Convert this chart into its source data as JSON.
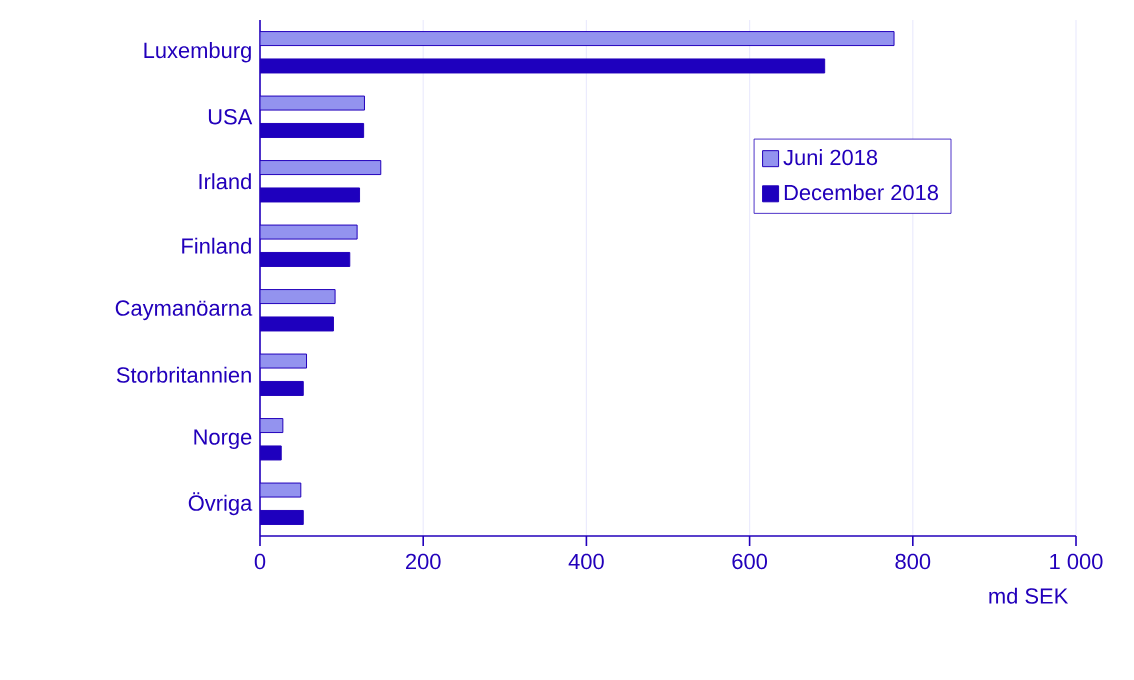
{
  "chart_data": {
    "type": "bar",
    "orientation": "horizontal",
    "xlabel": "md SEK",
    "categories": [
      "Luxemburg",
      "USA",
      "Irland",
      "Finland",
      "Caymanöarna",
      "Storbritannien",
      "Norge",
      "Övriga"
    ],
    "series": [
      {
        "name": "Juni 2018",
        "color": "#9393ef",
        "values": [
          777,
          128,
          148,
          119,
          92,
          57,
          28,
          50
        ]
      },
      {
        "name": "December 2018",
        "color": "#1e00be",
        "values": [
          692,
          127,
          122,
          110,
          90,
          53,
          26,
          53
        ]
      }
    ],
    "xlim": [
      0,
      1000
    ],
    "xticks": [
      0,
      200,
      400,
      600,
      800,
      {
        "value": 1000,
        "label": "1 000"
      }
    ],
    "grid": "x",
    "legend": "right"
  }
}
